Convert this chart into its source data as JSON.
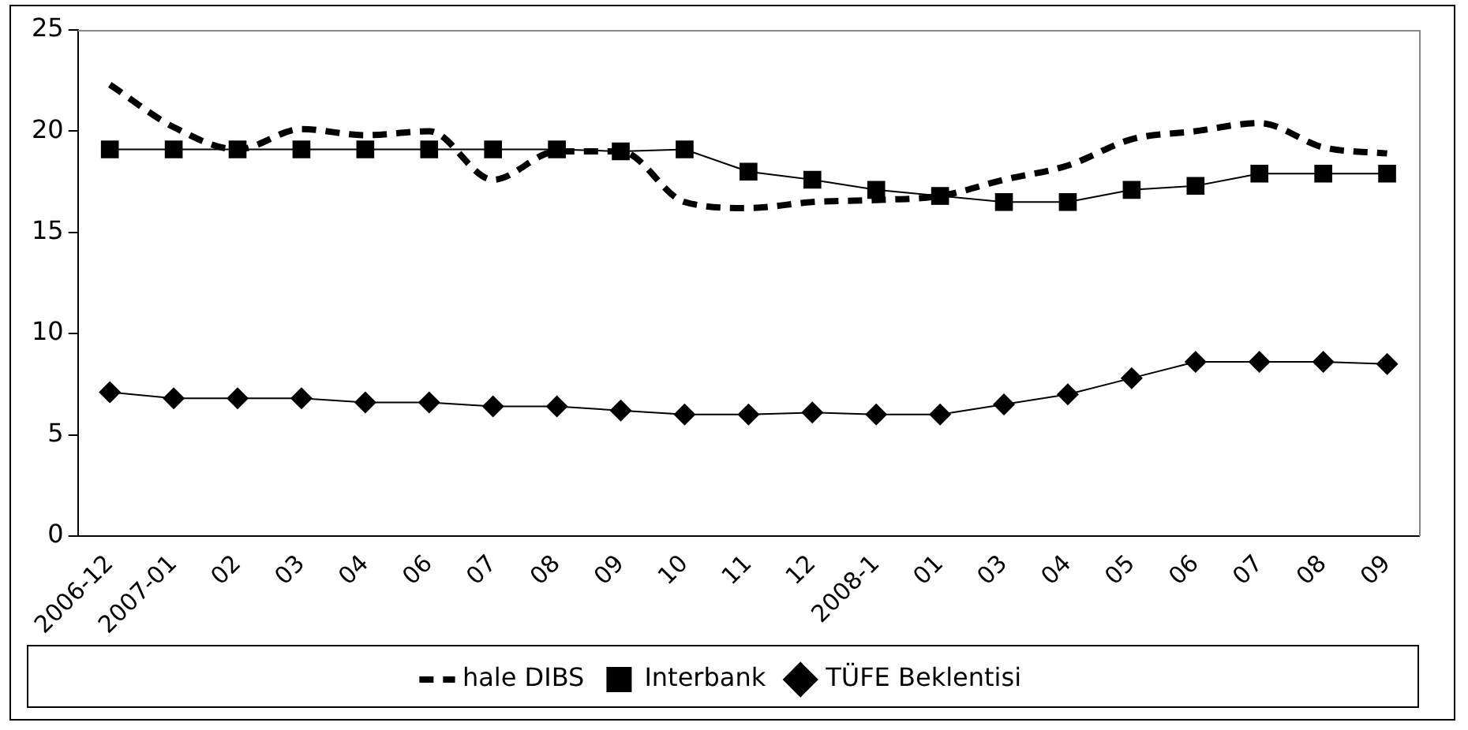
{
  "chart_data": {
    "type": "line",
    "categories": [
      "2006-12",
      "2007-01",
      "02",
      "03",
      "04",
      "06",
      "07",
      "08",
      "09",
      "10",
      "11",
      "12",
      "2008-1",
      "01",
      "03",
      "04",
      "05",
      "06",
      "07",
      "08",
      "09"
    ],
    "series": [
      {
        "name": "hale DIBS",
        "color": "#000000",
        "marker": "none",
        "line_style": "dashed",
        "values": [
          22.3,
          20.2,
          19.1,
          20.1,
          19.8,
          20.0,
          17.6,
          19.0,
          19.0,
          16.5,
          16.2,
          16.5,
          16.6,
          16.8,
          17.6,
          18.3,
          19.6,
          20.0,
          20.4,
          19.2,
          18.9
        ]
      },
      {
        "name": "Interbank",
        "color": "#000000",
        "marker": "square",
        "line_style": "solid",
        "values": [
          19.1,
          19.1,
          19.1,
          19.1,
          19.1,
          19.1,
          19.1,
          19.1,
          19.0,
          19.1,
          18.0,
          17.6,
          17.1,
          16.8,
          16.5,
          16.5,
          17.1,
          17.3,
          17.9,
          17.9,
          17.9
        ]
      },
      {
        "name": "TÜFE Beklentisi",
        "color": "#000000",
        "marker": "diamond",
        "line_style": "solid",
        "values": [
          7.1,
          6.8,
          6.8,
          6.8,
          6.6,
          6.6,
          6.4,
          6.4,
          6.2,
          6.0,
          6.0,
          6.1,
          6.0,
          6.0,
          6.5,
          7.0,
          7.8,
          8.6,
          8.6,
          8.6,
          8.5
        ]
      }
    ],
    "ylim": [
      0,
      25
    ],
    "yticks": [
      0,
      5,
      10,
      15,
      20,
      25
    ],
    "grid": false,
    "legend": "bottom"
  }
}
